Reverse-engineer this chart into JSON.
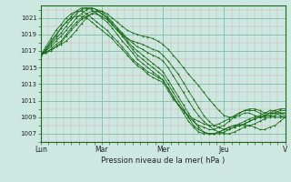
{
  "bg_color": "#cce8e0",
  "minor_grid_color": "#f0b8b8",
  "major_grid_color": "#88c8b8",
  "line_color": "#1a6b1a",
  "spine_color": "#1a6b1a",
  "title": "Pression niveau de la mer( hPa )",
  "ylim": [
    1006.0,
    1022.5
  ],
  "yticks": [
    1007,
    1009,
    1011,
    1013,
    1015,
    1017,
    1019,
    1021
  ],
  "xtick_labels": [
    "Lun",
    "Mar",
    "Mer",
    "Jeu",
    "V"
  ],
  "xtick_positions": [
    0,
    24,
    48,
    72,
    96
  ],
  "total_hours": 96,
  "series": [
    {
      "x": [
        0,
        2,
        4,
        6,
        8,
        10,
        12,
        14,
        16,
        18,
        20,
        22,
        24,
        26,
        28,
        30,
        32,
        34,
        36,
        38,
        40,
        42,
        44,
        46,
        48,
        50,
        52,
        54,
        56,
        58,
        60,
        62,
        64,
        66,
        68,
        70,
        72,
        74,
        76,
        78,
        80,
        82,
        84,
        86,
        88,
        90,
        92,
        94,
        96
      ],
      "y": [
        1016.5,
        1016.8,
        1017.2,
        1017.5,
        1017.8,
        1018.2,
        1018.8,
        1019.5,
        1020.3,
        1021.0,
        1021.5,
        1021.8,
        1021.8,
        1021.5,
        1021.0,
        1020.5,
        1020.0,
        1019.5,
        1019.2,
        1019.0,
        1018.8,
        1018.7,
        1018.5,
        1018.2,
        1017.8,
        1017.2,
        1016.5,
        1015.8,
        1015.0,
        1014.2,
        1013.5,
        1012.8,
        1012.0,
        1011.2,
        1010.5,
        1009.8,
        1009.2,
        1009.0,
        1009.0,
        1009.2,
        1009.5,
        1009.5,
        1009.2,
        1009.0,
        1009.0,
        1009.2,
        1009.0,
        1009.0,
        1009.0
      ]
    },
    {
      "x": [
        0,
        2,
        4,
        6,
        8,
        10,
        12,
        14,
        16,
        18,
        20,
        22,
        24,
        26,
        28,
        30,
        32,
        34,
        36,
        38,
        40,
        42,
        44,
        46,
        48,
        50,
        52,
        54,
        56,
        58,
        60,
        62,
        64,
        66,
        68,
        70,
        72,
        74,
        76,
        78,
        80,
        82,
        84,
        86,
        88,
        90,
        92,
        94,
        96
      ],
      "y": [
        1016.5,
        1016.8,
        1017.0,
        1017.5,
        1018.0,
        1018.8,
        1019.5,
        1020.2,
        1020.8,
        1021.2,
        1021.5,
        1021.5,
        1021.2,
        1020.8,
        1020.2,
        1019.5,
        1019.0,
        1018.5,
        1018.2,
        1018.0,
        1017.8,
        1017.5,
        1017.2,
        1017.0,
        1016.5,
        1015.8,
        1015.0,
        1014.2,
        1013.2,
        1012.2,
        1011.2,
        1010.2,
        1009.2,
        1008.5,
        1008.0,
        1007.8,
        1007.5,
        1007.5,
        1007.8,
        1008.0,
        1008.2,
        1008.5,
        1008.8,
        1009.0,
        1009.2,
        1009.5,
        1009.5,
        1009.2,
        1009.0
      ]
    },
    {
      "x": [
        0,
        2,
        4,
        6,
        8,
        10,
        12,
        14,
        16,
        18,
        20,
        22,
        24,
        26,
        28,
        30,
        32,
        34,
        36,
        38,
        40,
        42,
        44,
        46,
        48,
        50,
        52,
        54,
        56,
        58,
        60,
        62,
        64,
        66,
        68,
        70,
        72,
        74,
        76,
        78,
        80,
        82,
        84,
        86,
        88,
        90,
        92,
        94,
        96
      ],
      "y": [
        1016.5,
        1016.8,
        1017.2,
        1017.8,
        1018.2,
        1019.0,
        1019.8,
        1020.5,
        1021.0,
        1021.5,
        1021.8,
        1021.8,
        1021.5,
        1021.0,
        1020.5,
        1019.8,
        1019.2,
        1018.5,
        1018.0,
        1017.5,
        1017.2,
        1016.8,
        1016.5,
        1016.2,
        1015.8,
        1015.0,
        1014.0,
        1013.0,
        1012.0,
        1011.0,
        1010.0,
        1009.2,
        1008.5,
        1008.0,
        1007.5,
        1007.2,
        1007.0,
        1007.0,
        1007.2,
        1007.5,
        1007.8,
        1008.0,
        1008.2,
        1008.5,
        1008.8,
        1009.0,
        1009.2,
        1009.5,
        1009.5
      ]
    },
    {
      "x": [
        0,
        2,
        4,
        6,
        8,
        10,
        12,
        14,
        16,
        18,
        20,
        22,
        24,
        26,
        28,
        30,
        32,
        34,
        36,
        38,
        40,
        42,
        44,
        46,
        48,
        50,
        52,
        54,
        56,
        58,
        60,
        62,
        64,
        66,
        68,
        70,
        72,
        74,
        76,
        78,
        80,
        82,
        84,
        86,
        88,
        90,
        92,
        94,
        96
      ],
      "y": [
        1016.5,
        1017.0,
        1017.5,
        1018.2,
        1018.8,
        1019.5,
        1020.2,
        1021.0,
        1021.5,
        1022.0,
        1022.2,
        1022.0,
        1021.8,
        1021.2,
        1020.5,
        1019.8,
        1019.0,
        1018.2,
        1017.5,
        1017.0,
        1016.5,
        1016.0,
        1015.5,
        1015.0,
        1014.5,
        1013.5,
        1012.5,
        1011.5,
        1010.5,
        1009.5,
        1008.5,
        1007.8,
        1007.2,
        1007.0,
        1007.0,
        1007.0,
        1007.2,
        1007.5,
        1007.8,
        1008.0,
        1008.2,
        1008.5,
        1008.8,
        1009.0,
        1009.2,
        1009.5,
        1009.5,
        1009.5,
        1009.5
      ]
    },
    {
      "x": [
        0,
        2,
        4,
        6,
        8,
        10,
        12,
        14,
        16,
        18,
        20,
        22,
        24,
        26,
        28,
        30,
        32,
        34,
        36,
        38,
        40,
        42,
        44,
        46,
        48,
        50,
        52,
        54,
        56,
        58,
        60,
        62,
        64,
        66,
        68,
        70,
        72,
        74,
        76,
        78,
        80,
        82,
        84,
        86,
        88,
        90,
        92,
        94,
        96
      ],
      "y": [
        1016.5,
        1017.0,
        1017.8,
        1018.5,
        1019.2,
        1020.0,
        1020.8,
        1021.5,
        1022.0,
        1022.2,
        1022.2,
        1022.0,
        1021.5,
        1021.0,
        1020.2,
        1019.5,
        1018.8,
        1018.0,
        1017.2,
        1016.5,
        1016.0,
        1015.5,
        1015.0,
        1014.5,
        1014.0,
        1013.0,
        1012.0,
        1011.0,
        1010.0,
        1009.0,
        1008.0,
        1007.5,
        1007.2,
        1007.0,
        1007.0,
        1007.2,
        1007.5,
        1007.8,
        1008.0,
        1008.0,
        1008.0,
        1008.0,
        1007.8,
        1007.5,
        1007.5,
        1007.8,
        1008.0,
        1008.5,
        1009.0
      ]
    },
    {
      "x": [
        0,
        2,
        4,
        6,
        8,
        10,
        12,
        14,
        16,
        18,
        20,
        22,
        24,
        26,
        28,
        30,
        32,
        34,
        36,
        38,
        40,
        42,
        44,
        46,
        48,
        50,
        52,
        54,
        56,
        58,
        60,
        62,
        64,
        66,
        68,
        70,
        72,
        74,
        76,
        78,
        80,
        82,
        84,
        86,
        88,
        90,
        92,
        94,
        96
      ],
      "y": [
        1016.5,
        1017.2,
        1018.0,
        1018.8,
        1019.8,
        1020.5,
        1021.2,
        1021.8,
        1022.2,
        1022.2,
        1022.0,
        1021.5,
        1021.0,
        1020.5,
        1019.8,
        1019.0,
        1018.2,
        1017.5,
        1016.8,
        1016.0,
        1015.5,
        1015.0,
        1014.5,
        1014.0,
        1013.5,
        1012.5,
        1011.5,
        1010.5,
        1009.5,
        1008.5,
        1007.8,
        1007.2,
        1007.0,
        1007.0,
        1007.0,
        1007.2,
        1007.5,
        1007.8,
        1008.0,
        1008.2,
        1008.5,
        1008.8,
        1009.0,
        1009.2,
        1009.5,
        1009.8,
        1009.8,
        1009.5,
        1009.2
      ]
    },
    {
      "x": [
        0,
        2,
        4,
        6,
        8,
        10,
        12,
        14,
        16,
        18,
        20,
        22,
        24,
        26,
        28,
        30,
        32,
        34,
        36,
        38,
        40,
        42,
        44,
        46,
        48,
        50,
        52,
        54,
        56,
        58,
        60,
        62,
        64,
        66,
        68,
        70,
        72,
        74,
        76,
        78,
        80,
        82,
        84,
        86,
        88,
        90,
        92,
        94,
        96
      ],
      "y": [
        1016.5,
        1017.5,
        1018.5,
        1019.5,
        1020.2,
        1021.0,
        1021.5,
        1021.8,
        1021.8,
        1021.5,
        1021.0,
        1020.5,
        1020.0,
        1019.5,
        1018.8,
        1018.2,
        1017.5,
        1016.8,
        1016.0,
        1015.5,
        1015.0,
        1014.5,
        1014.2,
        1013.8,
        1013.5,
        1012.5,
        1011.5,
        1010.5,
        1009.8,
        1009.0,
        1008.5,
        1008.0,
        1007.8,
        1007.5,
        1007.5,
        1007.8,
        1008.0,
        1008.5,
        1009.0,
        1009.5,
        1009.8,
        1009.8,
        1009.8,
        1009.5,
        1009.2,
        1009.2,
        1009.5,
        1009.8,
        1009.8
      ]
    },
    {
      "x": [
        0,
        2,
        4,
        6,
        8,
        10,
        12,
        14,
        16,
        18,
        20,
        22,
        24,
        26,
        28,
        30,
        32,
        34,
        36,
        38,
        40,
        42,
        44,
        46,
        48,
        50,
        52,
        54,
        56,
        58,
        60,
        62,
        64,
        66,
        68,
        70,
        72,
        74,
        76,
        78,
        80,
        82,
        84,
        86,
        88,
        90,
        92,
        94,
        96
      ],
      "y": [
        1016.5,
        1017.2,
        1018.2,
        1019.0,
        1019.8,
        1020.5,
        1021.0,
        1021.2,
        1021.2,
        1021.0,
        1020.5,
        1020.0,
        1019.5,
        1019.0,
        1018.5,
        1017.8,
        1017.2,
        1016.5,
        1015.8,
        1015.2,
        1014.8,
        1014.2,
        1013.8,
        1013.5,
        1013.2,
        1012.2,
        1011.2,
        1010.5,
        1009.8,
        1009.2,
        1008.8,
        1008.5,
        1008.2,
        1008.0,
        1008.0,
        1008.2,
        1008.5,
        1008.8,
        1009.2,
        1009.5,
        1009.8,
        1010.0,
        1010.0,
        1009.8,
        1009.5,
        1009.5,
        1009.8,
        1010.0,
        1010.0
      ]
    }
  ]
}
